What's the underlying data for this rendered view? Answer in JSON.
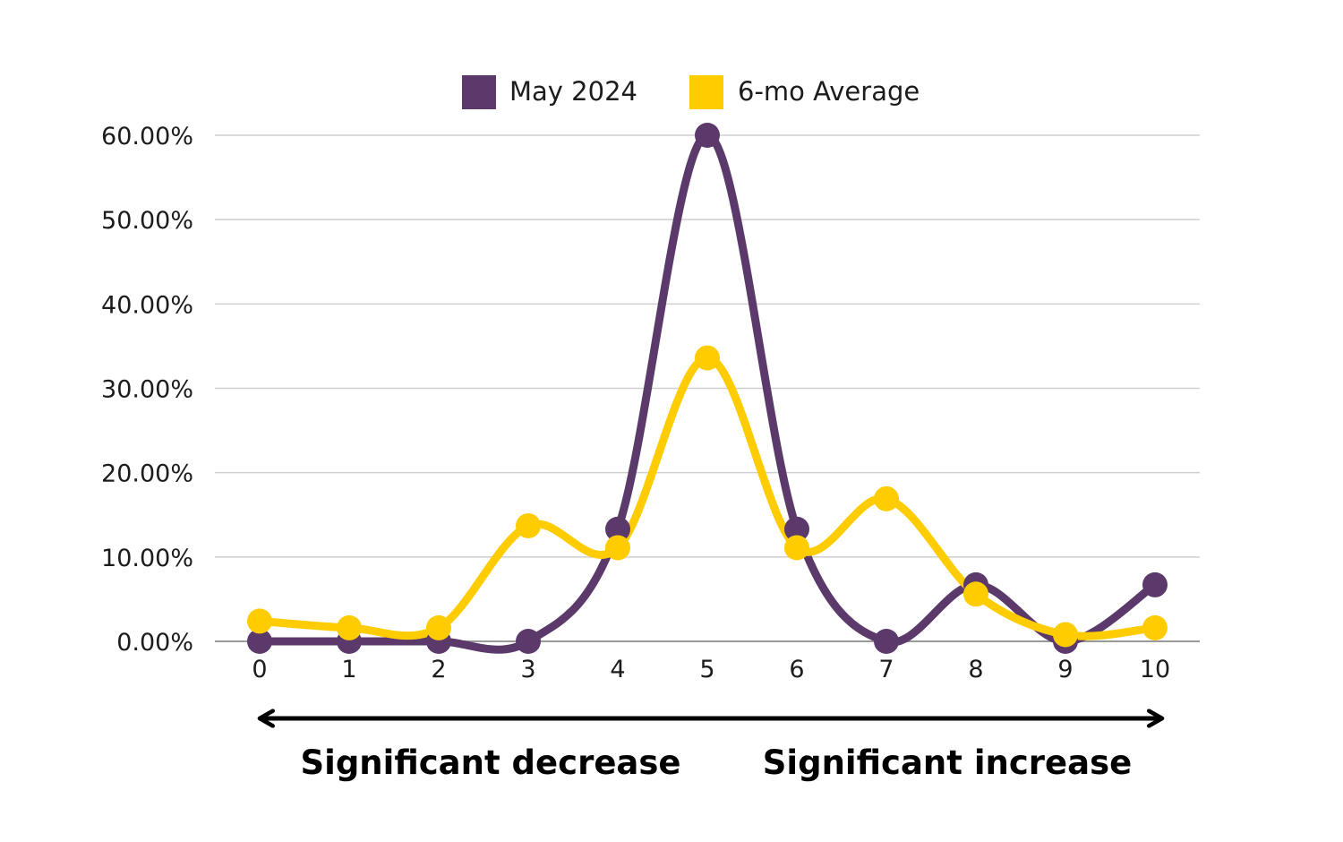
{
  "chart_data": {
    "type": "line",
    "x": [
      0,
      1,
      2,
      3,
      4,
      5,
      6,
      7,
      8,
      9,
      10
    ],
    "xlim": [
      0,
      10
    ],
    "ylim": [
      0,
      60
    ],
    "yticks": [
      0,
      10,
      20,
      30,
      40,
      50,
      60
    ],
    "ytick_labels": [
      "0.00%",
      "10.00%",
      "20.00%",
      "30.00%",
      "40.00%",
      "50.00%",
      "60.00%"
    ],
    "xtick_labels": [
      "0",
      "1",
      "2",
      "3",
      "4",
      "5",
      "6",
      "7",
      "8",
      "9",
      "10"
    ],
    "grid": true,
    "legend": "top-center",
    "smooth": true,
    "series": [
      {
        "name": "May 2024",
        "color": "#5b3a6b",
        "values": [
          0,
          0,
          0,
          0,
          13.3,
          60,
          13.3,
          0,
          6.7,
          0,
          6.7
        ]
      },
      {
        "name": "6-mo Average",
        "color": "#ffcc00",
        "values": [
          2.4,
          1.6,
          1.6,
          13.7,
          11.1,
          33.6,
          11.1,
          16.9,
          5.6,
          0.8,
          1.6
        ]
      }
    ],
    "annotations": {
      "left_label": "Significant decrease",
      "right_label": "Significant increase"
    }
  }
}
